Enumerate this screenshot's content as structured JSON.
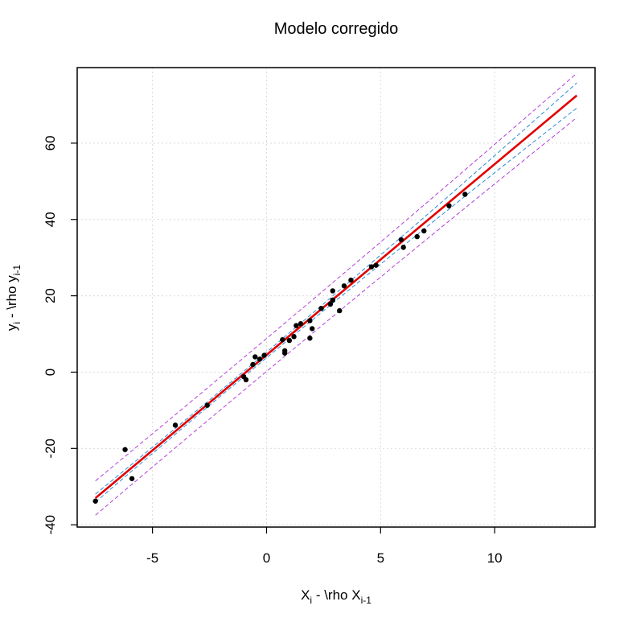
{
  "chart_data": {
    "type": "scatter",
    "title": "Modelo corregido",
    "xlabel": {
      "main": "X",
      "sub1": "i",
      "mid": " - \\rho X",
      "sub2": "i-1"
    },
    "ylabel": {
      "main": "y",
      "sub1": "i",
      "mid": " - \\rho y",
      "sub2": "i-1"
    },
    "xlim": [
      -8.3,
      14.4
    ],
    "ylim": [
      -40.6,
      79.8
    ],
    "xticks": [
      -5,
      0,
      5,
      10
    ],
    "yticks": [
      -40,
      -20,
      0,
      20,
      40,
      60
    ],
    "grid": true,
    "points": [
      [
        -7.5,
        -33.8
      ],
      [
        -6.2,
        -20.3
      ],
      [
        -5.9,
        -27.9
      ],
      [
        -4.0,
        -13.9
      ],
      [
        -2.6,
        -8.7
      ],
      [
        -1.0,
        -1.2
      ],
      [
        -0.9,
        -2.0
      ],
      [
        -0.6,
        2.0
      ],
      [
        -0.5,
        4.0
      ],
      [
        -0.3,
        3.4
      ],
      [
        -0.1,
        4.4
      ],
      [
        0.7,
        8.5
      ],
      [
        0.8,
        5.0
      ],
      [
        0.8,
        5.6
      ],
      [
        1.0,
        8.3
      ],
      [
        1.2,
        9.3
      ],
      [
        1.3,
        12.2
      ],
      [
        1.5,
        12.7
      ],
      [
        1.9,
        8.9
      ],
      [
        1.9,
        13.5
      ],
      [
        2.0,
        11.4
      ],
      [
        2.4,
        16.7
      ],
      [
        2.8,
        17.8
      ],
      [
        2.9,
        18.9
      ],
      [
        2.9,
        21.3
      ],
      [
        3.2,
        16.1
      ],
      [
        3.4,
        22.6
      ],
      [
        3.7,
        24.1
      ],
      [
        4.6,
        27.6
      ],
      [
        4.8,
        28.0
      ],
      [
        5.9,
        34.7
      ],
      [
        6.0,
        32.7
      ],
      [
        6.6,
        35.5
      ],
      [
        6.9,
        37.0
      ],
      [
        8.0,
        43.6
      ],
      [
        8.7,
        46.6
      ]
    ],
    "fit": {
      "intercept": 4.5,
      "slope": 5.0,
      "x_range": [
        -7.5,
        13.6
      ],
      "color": "#e00000"
    },
    "confidence_band": {
      "halfwidth_min": 0.7,
      "halfwidth_max": 3.3,
      "color": "#2b8bd6"
    },
    "prediction_band": {
      "halfwidth_min": 4.3,
      "halfwidth_max": 5.8,
      "color": "#b23fd8"
    },
    "point_color": "#000000",
    "grid_color": "#d9d9d9"
  }
}
